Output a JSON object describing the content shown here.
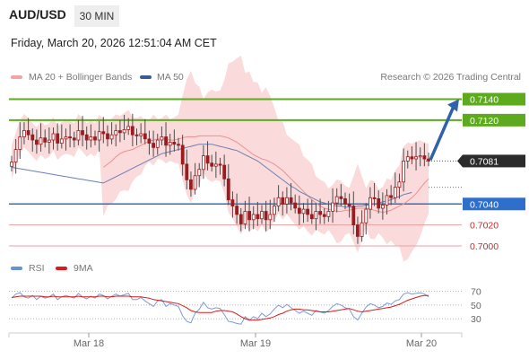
{
  "header": {
    "pair": "AUD/USD",
    "timeframe": "30 MIN",
    "datetime": "Friday, March 20, 2026 12:51:04 AM CET"
  },
  "legend": {
    "ma20_bb": "MA 20 + Bollinger Bands",
    "ma50": "MA 50",
    "credit": "Research © 2026 Trading Central",
    "rsi": "RSI",
    "ma9": "9MA"
  },
  "colors": {
    "candle": "#9a1c1f",
    "wick": "#4d4d4d",
    "bollinger_fill": "#f9d3d3",
    "ma20": "#f08f8f",
    "ma50": "#6b7fb3",
    "support_line": "#e8a0a0",
    "resistance_line": "#5daa1e",
    "pivot_line": "#3a6db4",
    "target_arrow": "#2f62a8",
    "rsi": "#7b9cd9",
    "rsi_ma": "#d91b1b",
    "axis_text": "#666666"
  },
  "chart_data": [
    {
      "type": "candlestick",
      "title": "AUD/USD 30 MIN",
      "y_range": [
        0.6994,
        0.7149
      ],
      "x_ticks": [
        "Mar 18",
        "Mar 19",
        "Mar 20"
      ],
      "levels": [
        {
          "value": 0.714,
          "label": "0.7140",
          "kind": "resistance"
        },
        {
          "value": 0.712,
          "label": "0.7120",
          "kind": "resistance"
        },
        {
          "value": 0.7081,
          "label": "0.7081",
          "kind": "last_price"
        },
        {
          "value": 0.704,
          "label": "0.7040",
          "kind": "pivot"
        },
        {
          "value": 0.702,
          "label": "0.7020",
          "kind": "support"
        },
        {
          "value": 0.7,
          "label": "0.7000",
          "kind": "support"
        }
      ],
      "target_arrow": {
        "from": 0.7082,
        "to": 0.714
      },
      "closes": [
        0.708,
        0.7092,
        0.7104,
        0.711,
        0.7106,
        0.7101,
        0.7097,
        0.7103,
        0.7099,
        0.7101,
        0.7107,
        0.7098,
        0.7102,
        0.7104,
        0.7103,
        0.7101,
        0.711,
        0.7106,
        0.7101,
        0.7104,
        0.7101,
        0.7109,
        0.7107,
        0.7102,
        0.7106,
        0.711,
        0.7108,
        0.7111,
        0.7114,
        0.7106,
        0.7105,
        0.7107,
        0.7102,
        0.7098,
        0.7094,
        0.7101,
        0.7104,
        0.7096,
        0.7099,
        0.7097,
        0.7096,
        0.7078,
        0.7063,
        0.7054,
        0.7067,
        0.7073,
        0.7086,
        0.7079,
        0.7076,
        0.7078,
        0.7077,
        0.7064,
        0.7044,
        0.7038,
        0.703,
        0.7021,
        0.7033,
        0.7025,
        0.703,
        0.7026,
        0.7033,
        0.7025,
        0.703,
        0.7038,
        0.7046,
        0.704,
        0.7046,
        0.7041,
        0.7036,
        0.7031,
        0.7035,
        0.703,
        0.7026,
        0.7033,
        0.703,
        0.7028,
        0.7033,
        0.7041,
        0.7047,
        0.7045,
        0.704,
        0.7038,
        0.702,
        0.7009,
        0.7022,
        0.7035,
        0.7046,
        0.7045,
        0.7036,
        0.7039,
        0.7048,
        0.7046,
        0.7056,
        0.7061,
        0.7081,
        0.7085,
        0.7083,
        0.7085,
        0.7086,
        0.7083,
        0.7081
      ],
      "ma20": [
        0.7075,
        0.7078,
        0.7081,
        0.7085,
        0.7088,
        0.709,
        0.7091,
        0.7092,
        0.7094,
        0.7096,
        0.7098,
        0.71,
        0.7101,
        0.7102,
        0.7102,
        0.7102,
        0.7101,
        0.7101,
        0.7102,
        0.7103,
        0.7104,
        0.7104,
        0.7104,
        0.7105,
        0.7105,
        0.7105,
        0.7105,
        0.7105,
        0.7105,
        0.7104,
        0.7103,
        0.7101,
        0.7099,
        0.7096,
        0.7093,
        0.709,
        0.7087,
        0.7085,
        0.7083,
        0.7082,
        0.708,
        0.7078,
        0.7075,
        0.7072,
        0.7068,
        0.7064,
        0.706,
        0.7056,
        0.7052,
        0.7048,
        0.7044,
        0.7041,
        0.7038,
        0.7036,
        0.7035,
        0.7034,
        0.7033,
        0.7033,
        0.7034,
        0.7034,
        0.7035,
        0.7036,
        0.7036,
        0.7036,
        0.7035,
        0.7034,
        0.7033,
        0.7032,
        0.7033,
        0.7034,
        0.7036,
        0.7038,
        0.704,
        0.7043,
        0.7046,
        0.705,
        0.7055,
        0.706,
        0.7064
      ],
      "ma20_start_index": 22,
      "ma50": [
        0.706,
        0.7062,
        0.7064,
        0.7066,
        0.7068,
        0.707,
        0.7072,
        0.7074,
        0.7076,
        0.7078,
        0.708,
        0.7082,
        0.7084,
        0.7086,
        0.7088,
        0.7089,
        0.709,
        0.7091,
        0.7092,
        0.7093,
        0.7094,
        0.7095,
        0.7096,
        0.7097,
        0.7097,
        0.7097,
        0.7097,
        0.7096,
        0.7095,
        0.7094,
        0.7093,
        0.7092,
        0.7091,
        0.7089,
        0.7087,
        0.7085,
        0.7083,
        0.7081,
        0.7078,
        0.7075,
        0.7072,
        0.7069,
        0.7066,
        0.7063,
        0.706,
        0.7057,
        0.7055,
        0.7052,
        0.705,
        0.7048,
        0.7046,
        0.7044,
        0.7042,
        0.7041,
        0.704,
        0.7039,
        0.7038,
        0.7038,
        0.7037,
        0.7037,
        0.7037,
        0.7038,
        0.7038,
        0.7039,
        0.7039,
        0.704,
        0.7041,
        0.7042,
        0.7043,
        0.7044,
        0.7046,
        0.7047,
        0.7049,
        0.705,
        0.7051
      ],
      "ma50_start_index": 22
    },
    {
      "type": "line",
      "title": "RSI",
      "y_ticks": [
        30,
        50,
        70
      ],
      "y_range": [
        17,
        80
      ],
      "series": [
        {
          "name": "RSI",
          "values": [
            60,
            66,
            68,
            62,
            60,
            64,
            58,
            63,
            60,
            62,
            66,
            58,
            62,
            64,
            62,
            60,
            67,
            62,
            59,
            63,
            60,
            66,
            64,
            59,
            63,
            66,
            63,
            65,
            67,
            58,
            58,
            61,
            56,
            52,
            48,
            56,
            58,
            48,
            52,
            50,
            48,
            34,
            26,
            24,
            38,
            44,
            54,
            46,
            44,
            46,
            45,
            36,
            26,
            25,
            23,
            22,
            33,
            28,
            33,
            30,
            38,
            33,
            37,
            44,
            50,
            46,
            51,
            46,
            42,
            38,
            41,
            38,
            35,
            42,
            40,
            38,
            42,
            48,
            52,
            50,
            46,
            44,
            33,
            28,
            38,
            47,
            52,
            50,
            46,
            48,
            53,
            51,
            56,
            58,
            66,
            68,
            66,
            67,
            68,
            66,
            62
          ]
        },
        {
          "name": "9MA",
          "values": [
            61,
            62,
            63,
            63,
            63,
            63,
            63,
            63,
            62,
            62,
            63,
            62,
            62,
            62,
            62,
            62,
            63,
            62,
            62,
            62,
            62,
            63,
            63,
            62,
            62,
            63,
            63,
            63,
            63,
            62,
            62,
            62,
            61,
            60,
            58,
            57,
            56,
            55,
            54,
            53,
            52,
            49,
            46,
            42,
            40,
            39,
            39,
            39,
            39,
            41,
            42,
            42,
            41,
            40,
            37,
            33,
            30,
            28,
            28,
            28,
            29,
            30,
            31,
            33,
            36,
            38,
            41,
            43,
            44,
            44,
            43,
            43,
            42,
            41,
            40,
            40,
            40,
            41,
            42,
            43,
            44,
            45,
            43,
            41,
            40,
            41,
            42,
            43,
            44,
            45,
            46,
            47,
            49,
            51,
            54,
            57,
            59,
            61,
            63,
            64,
            64
          ]
        }
      ]
    }
  ]
}
